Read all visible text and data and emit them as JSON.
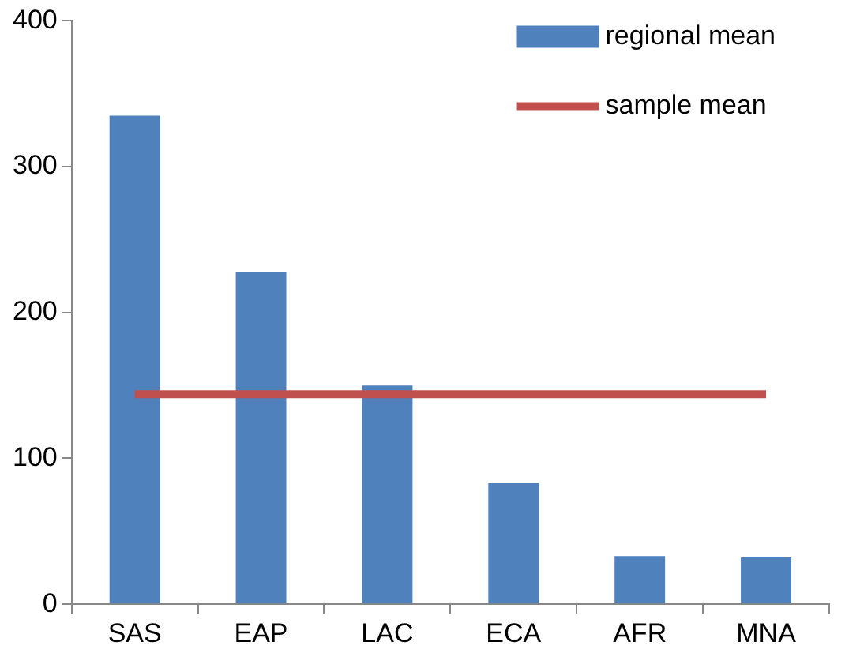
{
  "chart_data": {
    "type": "bar",
    "categories": [
      "SAS",
      "EAP",
      "LAC",
      "ECA",
      "AFR",
      "MNA"
    ],
    "series": [
      {
        "name": "regional mean",
        "color": "#4f81bd",
        "values": [
          335,
          228,
          150,
          83,
          33,
          32
        ]
      },
      {
        "name": "sample mean",
        "type": "line",
        "color": "#c0504d",
        "values": [
          144,
          144,
          144,
          144,
          144,
          144
        ]
      }
    ],
    "ylim": [
      0,
      400
    ],
    "yticks": [
      0,
      100,
      200,
      300,
      400
    ],
    "grid": false,
    "legend": "top right",
    "marker": "none"
  }
}
